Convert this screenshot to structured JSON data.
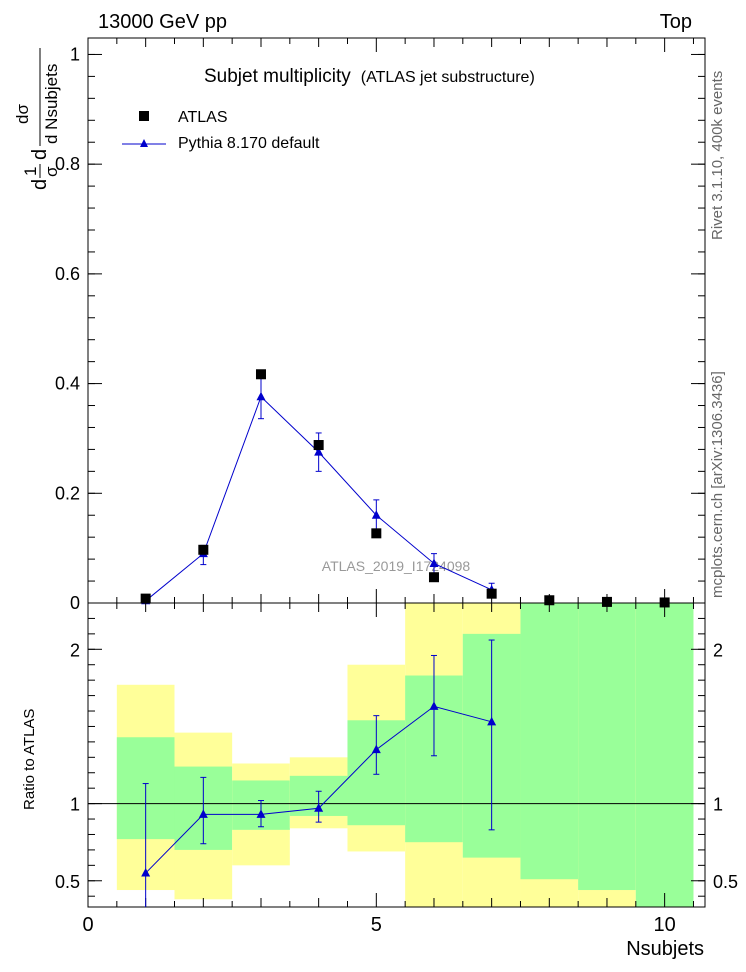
{
  "header": {
    "left": "13000 GeV pp",
    "right": "Top"
  },
  "side_labels": {
    "right_top": "Rivet 3.1.10,  400k events",
    "right_bottom": "mcplots.cern.ch [arXiv:1306.3436]"
  },
  "watermark": "ATLAS_2019_I1724098",
  "chart_data": [
    {
      "type": "scatter",
      "panel": "main",
      "title": "Subjet multiplicity",
      "subtitle": "(ATLAS jet substructure)",
      "ylabel_parts": {
        "prefix": "d",
        "frac1_num": "1",
        "frac1_den": "σ",
        "mid": "d",
        "frac2_num": "dσ",
        "frac2_den": "d Nsubjets"
      },
      "xlim": [
        0,
        10.7
      ],
      "ylim": [
        0,
        1.03
      ],
      "yticks": [
        0,
        0.2,
        0.4,
        0.6,
        0.8,
        1
      ],
      "ytick_labels": [
        "0",
        "0.2",
        "0.4",
        "0.6",
        "0.8",
        "1"
      ],
      "legend_position": "top-left",
      "series": [
        {
          "name": "ATLAS",
          "marker": "square",
          "color": "#000000",
          "x": [
            1,
            2,
            3,
            4,
            5,
            6,
            7,
            8,
            9,
            10
          ],
          "y": [
            0.008,
            0.097,
            0.417,
            0.288,
            0.127,
            0.047,
            0.017,
            0.005,
            0.002,
            0.001
          ]
        },
        {
          "name": "Pythia 8.170 default",
          "marker": "triangle",
          "color": "#0000cc",
          "x": [
            1,
            2,
            3,
            4,
            5,
            6,
            7
          ],
          "y": [
            0.004,
            0.09,
            0.376,
            0.275,
            0.16,
            0.072,
            0.024
          ],
          "err_low": [
            0.004,
            0.02,
            0.04,
            0.035,
            0.028,
            0.018,
            0.012
          ],
          "err_high": [
            0.004,
            0.015,
            0.04,
            0.035,
            0.028,
            0.018,
            0.012
          ]
        }
      ]
    },
    {
      "type": "scatter",
      "panel": "ratio",
      "ylabel": "Ratio to ATLAS",
      "xlabel": "Nsubjets",
      "xlim": [
        0,
        10.7
      ],
      "ylim": [
        0.33,
        2.3
      ],
      "xticks": [
        0,
        5,
        10
      ],
      "xtick_labels": [
        "0",
        "5",
        "10"
      ],
      "yticks": [
        0.5,
        1,
        2
      ],
      "ytick_labels": [
        "0.5",
        "1",
        "2"
      ],
      "bands": [
        {
          "x0": 0.5,
          "x1": 1.5,
          "yellow": [
            0.44,
            1.77
          ],
          "green": [
            0.77,
            1.43
          ]
        },
        {
          "x0": 1.5,
          "x1": 2.5,
          "yellow": [
            0.38,
            1.46
          ],
          "green": [
            0.7,
            1.24
          ]
        },
        {
          "x0": 2.5,
          "x1": 3.5,
          "yellow": [
            0.6,
            1.26
          ],
          "green": [
            0.83,
            1.15
          ]
        },
        {
          "x0": 3.5,
          "x1": 4.5,
          "yellow": [
            0.84,
            1.3
          ],
          "green": [
            0.92,
            1.18
          ]
        },
        {
          "x0": 4.5,
          "x1": 5.5,
          "yellow": [
            0.69,
            1.9
          ],
          "green": [
            0.86,
            1.54
          ]
        },
        {
          "x0": 5.5,
          "x1": 6.5,
          "yellow": [
            0.33,
            2.3
          ],
          "green": [
            0.75,
            1.83
          ]
        },
        {
          "x0": 6.5,
          "x1": 7.5,
          "yellow": [
            0.33,
            2.3
          ],
          "green": [
            0.65,
            2.1
          ]
        },
        {
          "x0": 7.5,
          "x1": 8.5,
          "yellow": [
            0.33,
            2.3
          ],
          "green": [
            0.51,
            2.3
          ]
        },
        {
          "x0": 8.5,
          "x1": 9.5,
          "yellow": [
            0.33,
            2.3
          ],
          "green": [
            0.44,
            2.3
          ]
        },
        {
          "x0": 9.5,
          "x1": 10.5,
          "yellow": [
            0.33,
            2.3
          ],
          "green": [
            0.33,
            2.3
          ]
        }
      ],
      "series": [
        {
          "name": "Pythia 8.170 default",
          "marker": "triangle",
          "color": "#0000cc",
          "x": [
            1,
            2,
            3,
            4,
            5,
            6,
            7
          ],
          "y": [
            0.55,
            0.93,
            0.93,
            0.97,
            1.35,
            1.63,
            1.53
          ],
          "err_low": [
            0.3,
            0.19,
            0.08,
            0.09,
            0.16,
            0.32,
            0.7
          ],
          "err_high": [
            0.58,
            0.24,
            0.09,
            0.11,
            0.22,
            0.33,
            0.53
          ]
        }
      ]
    }
  ]
}
